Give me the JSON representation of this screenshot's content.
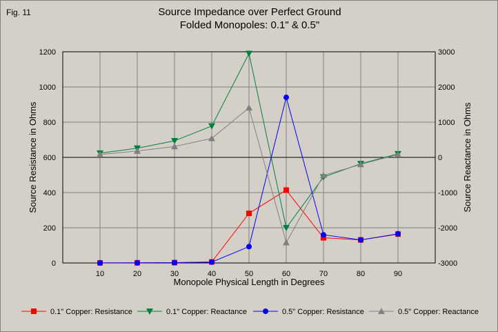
{
  "figure_label": "Fig. 11",
  "chart_data": {
    "type": "line",
    "title": "Source Impedance over Perfect Ground",
    "subtitle": "Folded Monopoles: 0.1\" & 0.5\"",
    "xlabel": "Monopole Physical Length in Degrees",
    "ylabel_left": "Source Resistance in Ohms",
    "ylabel_right": "Source Reactance in Ohms",
    "x": [
      10,
      20,
      30,
      40,
      50,
      60,
      70,
      80,
      90
    ],
    "xlim": [
      0,
      100
    ],
    "x_ticks": [
      10,
      20,
      30,
      40,
      50,
      60,
      70,
      80,
      90
    ],
    "ylim_left": [
      0,
      1200
    ],
    "y_ticks_left": [
      0,
      200,
      400,
      600,
      800,
      1000,
      1200
    ],
    "ylim_right": [
      -3000,
      3000
    ],
    "y_ticks_right": [
      -3000,
      -2000,
      -1000,
      0,
      1000,
      2000,
      3000
    ],
    "grid": true,
    "legend_position": "bottom",
    "series": [
      {
        "name": "0.1\" Copper: Resistance",
        "axis": "left",
        "color": "#ff0000",
        "marker": "square",
        "values": [
          0.5,
          1,
          2,
          6,
          282,
          414,
          143,
          131,
          164
        ]
      },
      {
        "name": "0.1\" Copper: Reactance",
        "axis": "right",
        "color": "#008040",
        "marker": "triangle-down",
        "values": [
          120,
          260,
          470,
          890,
          2950,
          -2000,
          -560,
          -180,
          100
        ]
      },
      {
        "name": "0.5\" Copper: Resistance",
        "axis": "left",
        "color": "#0000ff",
        "marker": "circle",
        "values": [
          0.5,
          1,
          2,
          5,
          93,
          941,
          160,
          131,
          166
        ]
      },
      {
        "name": "0.5\" Copper: Reactance",
        "axis": "right",
        "color": "#808080",
        "marker": "triangle-up",
        "values": [
          80,
          180,
          310,
          540,
          1410,
          -2420,
          -510,
          -200,
          80
        ]
      }
    ]
  }
}
